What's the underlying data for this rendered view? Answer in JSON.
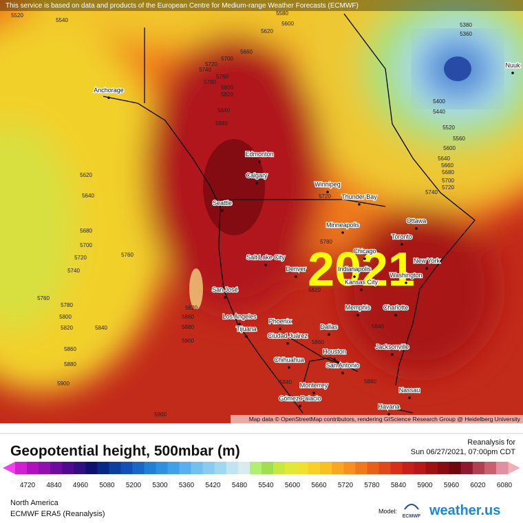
{
  "attribution": "This service is based on data and products of the European Centre for Medium-range Weather Forecasts (ECMWF)",
  "map_credit": "Map data © OpenStreetMap contributors, rendering GIScience Research Group @ Heidelberg University",
  "overlay_year": "2021",
  "cities": [
    "Anchorage",
    "Edmonton",
    "Calgary",
    "Seattle",
    "Winnipeg",
    "Thunder Bay",
    "Minneapolis",
    "Ottawa",
    "Toronto",
    "Chicago",
    "New York",
    "Salt Lake City",
    "Denver",
    "Washington",
    "Indianapolis",
    "Kansas City",
    "San José",
    "Memphis",
    "Charlotte",
    "Los Angeles",
    "Phoenix",
    "Dallas",
    "Tijuana",
    "Ciudad Juárez",
    "Jacksonville",
    "Houston",
    "Chihuahua",
    "San Antonio",
    "Monterrey",
    "Nassau",
    "Gómez Palacio",
    "Havana",
    "Nuuk"
  ],
  "contour_labels": [
    5520,
    5540,
    5580,
    5600,
    5620,
    5660,
    5700,
    5720,
    5740,
    5760,
    5780,
    5800,
    5820,
    5840,
    5880,
    5620,
    5640,
    5680,
    5700,
    5720,
    5740,
    5760,
    5760,
    5780,
    5800,
    5820,
    5840,
    5860,
    5880,
    5900,
    5900,
    5820,
    5860,
    5880,
    5900,
    5820,
    5780,
    5720,
    5740,
    5600,
    5640,
    5660,
    5680,
    5700,
    5720,
    5380,
    5360,
    5400,
    5440,
    5520,
    5560,
    5840,
    5880,
    5840,
    5860
  ],
  "legend": {
    "title": "Geopotential height, 500mbar (m)",
    "run_label": "Reanalysis for",
    "valid_time": "Sun 06/27/2021, 07:00pm CDT",
    "ticks": [
      4720,
      4840,
      4960,
      5080,
      5200,
      5300,
      5360,
      5420,
      5480,
      5540,
      5600,
      5660,
      5720,
      5780,
      5840,
      5900,
      5960,
      6020,
      6080
    ],
    "colors": [
      "#d020d0",
      "#b010c0",
      "#9010b0",
      "#700aa0",
      "#500a90",
      "#301080",
      "#101070",
      "#082888",
      "#0a40a0",
      "#1050b8",
      "#1868c8",
      "#2080d8",
      "#3090e0",
      "#40a0e8",
      "#58b0f0",
      "#70c0f0",
      "#88ccf0",
      "#a0d8f0",
      "#c0e4f0",
      "#d8ecf0",
      "#b0f070",
      "#a0e050",
      "#c8e840",
      "#e0e838",
      "#f0e030",
      "#f8d028",
      "#f8c020",
      "#f8a820",
      "#f89020",
      "#f07818",
      "#e86018",
      "#e04818",
      "#d83018",
      "#c82018",
      "#b81818",
      "#a01010",
      "#880c10",
      "#700810",
      "#901830",
      "#b04050",
      "#c86070",
      "#e090a0"
    ]
  },
  "footer": {
    "region": "North America",
    "model_name": "ECMWF ERA5 (Reanalysis)",
    "model_label": "Model:",
    "model_logo": "ECMWF",
    "brand": "weather.us"
  }
}
